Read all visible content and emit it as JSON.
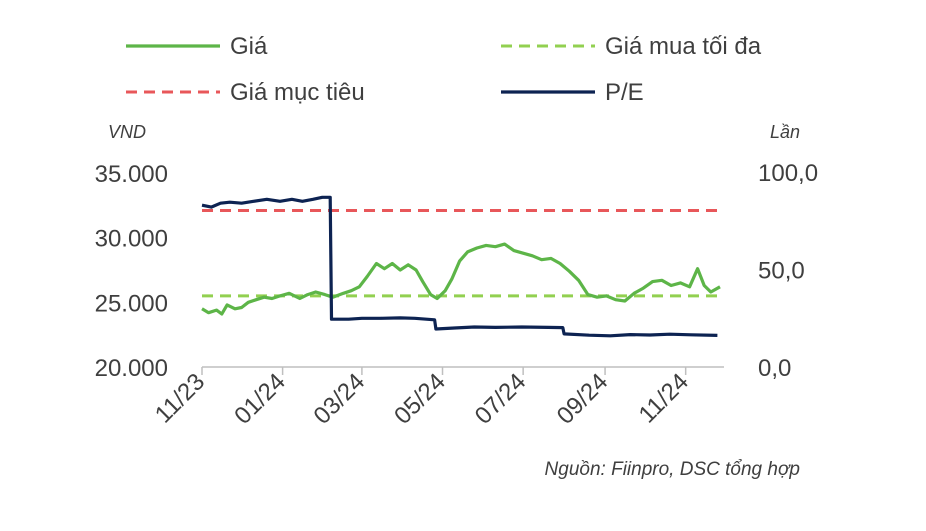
{
  "chart_data": {
    "type": "line",
    "left_axis": {
      "unit": "VND",
      "ticks": [
        "35.000",
        "30.000",
        "25.000",
        "20.000"
      ],
      "range": [
        20000,
        35000
      ]
    },
    "right_axis": {
      "unit": "Lần",
      "ticks": [
        "100,0",
        "50,0",
        "0,0"
      ],
      "range": [
        0,
        100
      ]
    },
    "x_ticks": [
      "11/23",
      "01/24",
      "03/24",
      "05/24",
      "07/24",
      "09/24",
      "11/24"
    ],
    "x_range": [
      "2023-11-01",
      "2024-11-30"
    ],
    "legend_placement": "top",
    "grid": false,
    "source": "Nguồn: Fiinpro, DSC tổng hợp",
    "series": [
      {
        "name": "Giá",
        "axis": "left",
        "color": "#5db548",
        "style": "solid",
        "points": [
          [
            "2023-11-01",
            24500
          ],
          [
            "2023-11-06",
            24200
          ],
          [
            "2023-11-12",
            24400
          ],
          [
            "2023-11-16",
            24100
          ],
          [
            "2023-11-20",
            24800
          ],
          [
            "2023-11-26",
            24500
          ],
          [
            "2023-12-01",
            24600
          ],
          [
            "2023-12-06",
            25000
          ],
          [
            "2023-12-12",
            25200
          ],
          [
            "2023-12-18",
            25400
          ],
          [
            "2023-12-24",
            25300
          ],
          [
            "2023-12-30",
            25500
          ],
          [
            "2024-01-06",
            25700
          ],
          [
            "2024-01-14",
            25300
          ],
          [
            "2024-01-20",
            25600
          ],
          [
            "2024-01-26",
            25800
          ],
          [
            "2024-02-02",
            25600
          ],
          [
            "2024-02-08",
            25400
          ],
          [
            "2024-02-16",
            25700
          ],
          [
            "2024-02-22",
            25900
          ],
          [
            "2024-02-28",
            26200
          ],
          [
            "2024-03-05",
            27000
          ],
          [
            "2024-03-12",
            28000
          ],
          [
            "2024-03-18",
            27600
          ],
          [
            "2024-03-24",
            28000
          ],
          [
            "2024-03-30",
            27500
          ],
          [
            "2024-04-05",
            27900
          ],
          [
            "2024-04-11",
            27500
          ],
          [
            "2024-04-16",
            26600
          ],
          [
            "2024-04-22",
            25600
          ],
          [
            "2024-04-27",
            25300
          ],
          [
            "2024-05-03",
            25900
          ],
          [
            "2024-05-08",
            26800
          ],
          [
            "2024-05-14",
            28200
          ],
          [
            "2024-05-20",
            28900
          ],
          [
            "2024-05-27",
            29200
          ],
          [
            "2024-06-03",
            29400
          ],
          [
            "2024-06-10",
            29300
          ],
          [
            "2024-06-17",
            29500
          ],
          [
            "2024-06-24",
            29000
          ],
          [
            "2024-07-01",
            28800
          ],
          [
            "2024-07-08",
            28600
          ],
          [
            "2024-07-15",
            28300
          ],
          [
            "2024-07-22",
            28400
          ],
          [
            "2024-07-29",
            28000
          ],
          [
            "2024-08-05",
            27400
          ],
          [
            "2024-08-12",
            26700
          ],
          [
            "2024-08-19",
            25600
          ],
          [
            "2024-08-26",
            25400
          ],
          [
            "2024-09-02",
            25500
          ],
          [
            "2024-09-09",
            25200
          ],
          [
            "2024-09-16",
            25100
          ],
          [
            "2024-09-23",
            25700
          ],
          [
            "2024-09-30",
            26100
          ],
          [
            "2024-10-07",
            26600
          ],
          [
            "2024-10-14",
            26700
          ],
          [
            "2024-10-21",
            26300
          ],
          [
            "2024-10-28",
            26500
          ],
          [
            "2024-11-04",
            26200
          ],
          [
            "2024-11-10",
            27600
          ],
          [
            "2024-11-15",
            26300
          ],
          [
            "2024-11-20",
            25800
          ],
          [
            "2024-11-27",
            26200
          ]
        ]
      },
      {
        "name": "Giá mua tối đa",
        "axis": "left",
        "color": "#92d050",
        "style": "dashed",
        "points": [
          [
            "2023-11-01",
            25500
          ],
          [
            "2024-11-30",
            25500
          ]
        ]
      },
      {
        "name": "Giá mục tiêu",
        "axis": "left",
        "color": "#e8575a",
        "style": "dashed",
        "points": [
          [
            "2023-11-01",
            32100
          ],
          [
            "2024-11-30",
            32100
          ]
        ]
      },
      {
        "name": "P/E",
        "axis": "right",
        "color": "#0d2352",
        "style": "solid",
        "points": [
          [
            "2023-11-01",
            83
          ],
          [
            "2023-11-08",
            82
          ],
          [
            "2023-11-15",
            84
          ],
          [
            "2023-11-22",
            84.5
          ],
          [
            "2023-12-01",
            84
          ],
          [
            "2023-12-10",
            85
          ],
          [
            "2023-12-20",
            86
          ],
          [
            "2023-12-30",
            85
          ],
          [
            "2024-01-08",
            86
          ],
          [
            "2024-01-16",
            85
          ],
          [
            "2024-01-24",
            86
          ],
          [
            "2024-01-31",
            87
          ],
          [
            "2024-02-06",
            87
          ],
          [
            "2024-02-07",
            24.5
          ],
          [
            "2024-02-20",
            24.5
          ],
          [
            "2024-03-01",
            25
          ],
          [
            "2024-03-15",
            25
          ],
          [
            "2024-03-30",
            25.2
          ],
          [
            "2024-04-10",
            25
          ],
          [
            "2024-04-25",
            24.2
          ],
          [
            "2024-04-26",
            19.5
          ],
          [
            "2024-05-10",
            20
          ],
          [
            "2024-05-25",
            20.5
          ],
          [
            "2024-06-10",
            20.3
          ],
          [
            "2024-06-30",
            20.5
          ],
          [
            "2024-07-20",
            20.3
          ],
          [
            "2024-07-31",
            20.2
          ],
          [
            "2024-08-01",
            17
          ],
          [
            "2024-08-20",
            16.3
          ],
          [
            "2024-09-05",
            16
          ],
          [
            "2024-09-20",
            16.6
          ],
          [
            "2024-10-05",
            16.4
          ],
          [
            "2024-10-20",
            16.8
          ],
          [
            "2024-11-05",
            16.5
          ],
          [
            "2024-11-25",
            16.2
          ]
        ]
      }
    ]
  }
}
